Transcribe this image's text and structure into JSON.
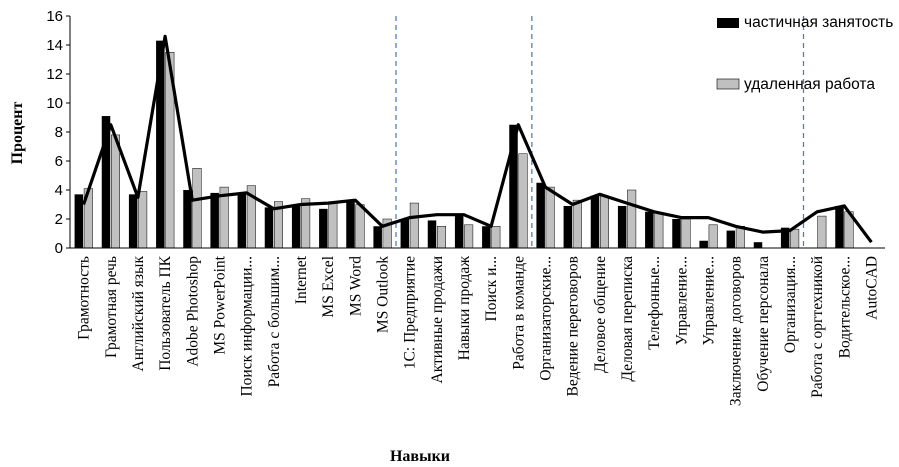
{
  "chart_data": {
    "type": "bar",
    "xlabel": "Навыки",
    "ylabel": "Процент",
    "ylim": [
      0,
      16
    ],
    "yticks": [
      0,
      2,
      4,
      6,
      8,
      10,
      12,
      14,
      16
    ],
    "grid": false,
    "legend_position": "top-right",
    "group_separators_after_index": [
      11,
      16,
      26,
      30
    ],
    "categories": [
      "Грамотность",
      "Грамотная речь",
      "Английский язык",
      "Пользователь ПК",
      "Adobe Photoshop",
      "MS PowerPoint",
      "Поиск информации...",
      "Работа с большим...",
      "Internet",
      "MS Excel",
      "MS Word",
      "MS Outlook",
      "1С: Предприятие",
      "Активные продажи",
      "Навыки продаж",
      "Поиск и...",
      "Работа в команде",
      "Организаторские...",
      "Ведение переговоров",
      "Деловое общение",
      "Деловая переписка",
      "Телефонные...",
      "Управление...",
      "Управление...",
      "Заключение договоров",
      "Обучение персонала",
      "Организация...",
      "Работа с оргтехникой",
      "Водительское...",
      "AutoCAD"
    ],
    "series": [
      {
        "name": "частичная занятость",
        "color": "#000000",
        "values": [
          3.7,
          9.1,
          3.7,
          14.3,
          4.0,
          3.8,
          3.7,
          2.8,
          2.9,
          2.7,
          3.2,
          1.5,
          2.0,
          1.9,
          2.3,
          1.5,
          8.5,
          4.5,
          2.9,
          3.6,
          2.9,
          2.5,
          2.0,
          0.5,
          1.2,
          0.4,
          1.4,
          0.0,
          2.9,
          0.0
        ]
      },
      {
        "name": "удаленная работа",
        "color": "#c0c0c0",
        "values": [
          4.1,
          7.8,
          3.9,
          13.5,
          5.5,
          4.2,
          4.3,
          3.2,
          3.4,
          3.1,
          3.0,
          2.0,
          3.1,
          1.5,
          1.6,
          1.5,
          6.5,
          4.2,
          3.3,
          3.6,
          4.0,
          2.4,
          2.0,
          1.6,
          1.5,
          0.0,
          1.3,
          2.2,
          2.5,
          0.0
        ]
      }
    ],
    "trend_line": [
      3.0,
      8.5,
      3.5,
      14.6,
      3.3,
      3.6,
      3.8,
      2.7,
      3.0,
      3.1,
      3.3,
      1.5,
      2.1,
      2.3,
      2.3,
      1.5,
      8.5,
      4.2,
      3.0,
      3.7,
      3.1,
      2.5,
      2.1,
      2.1,
      1.5,
      1.1,
      1.2,
      2.5,
      2.9,
      0.4
    ]
  }
}
